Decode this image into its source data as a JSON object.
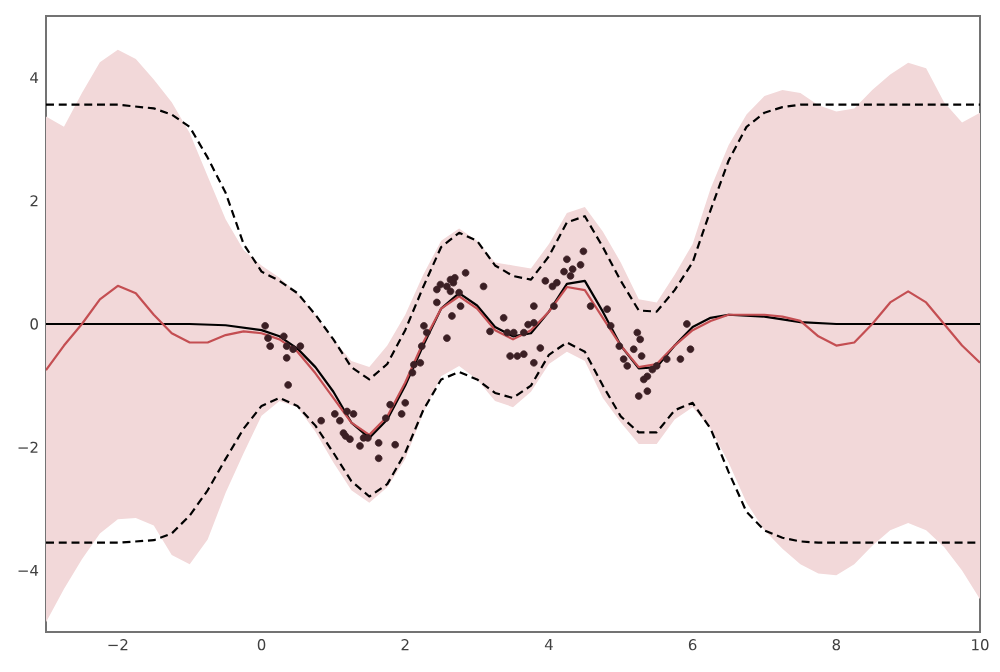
{
  "chart_data": {
    "type": "line",
    "xlim": [
      -3,
      10
    ],
    "ylim": [
      -5,
      5
    ],
    "xticks": [
      {
        "value": -2,
        "label": "−2"
      },
      0,
      2,
      4,
      6,
      8,
      10
    ],
    "yticks": [
      {
        "value": -4,
        "label": "−4"
      },
      {
        "value": -2,
        "label": "−2"
      },
      0,
      2,
      4
    ],
    "series": [
      {
        "color": "#000000",
        "line_style": "dashed",
        "x": [
          -3,
          -2.5,
          -2,
          -1.5,
          -1.25,
          -1,
          -0.75,
          -0.5,
          -0.25,
          0,
          0.25,
          0.5,
          0.75,
          1,
          1.25,
          1.5,
          1.75,
          2,
          2.25,
          2.5,
          2.75,
          3,
          3.25,
          3.5,
          3.75,
          4,
          4.25,
          4.5,
          4.75,
          5,
          5.25,
          5.5,
          5.75,
          6,
          6.25,
          6.5,
          6.75,
          7,
          7.25,
          7.5,
          8,
          10
        ],
        "values": [
          3.56,
          3.56,
          3.56,
          3.5,
          3.4,
          3.2,
          2.7,
          2.13,
          1.3,
          0.85,
          0.7,
          0.5,
          0.15,
          -0.25,
          -0.7,
          -0.9,
          -0.65,
          -0.1,
          0.6,
          1.25,
          1.48,
          1.35,
          0.95,
          0.78,
          0.72,
          1.1,
          1.65,
          1.75,
          1.25,
          0.7,
          0.22,
          0.2,
          0.55,
          1.0,
          1.85,
          2.65,
          3.2,
          3.43,
          3.52,
          3.56,
          3.56,
          3.56
        ]
      },
      {
        "color": "#000000",
        "line_style": "dashed",
        "x": [
          -3,
          -2,
          -1.5,
          -1.25,
          -1,
          -0.75,
          -0.5,
          -0.25,
          0,
          0.25,
          0.5,
          0.75,
          1,
          1.25,
          1.5,
          1.75,
          2,
          2.25,
          2.5,
          2.75,
          3,
          3.25,
          3.5,
          3.75,
          4,
          4.25,
          4.5,
          4.75,
          5,
          5.25,
          5.5,
          5.75,
          6,
          6.25,
          6.5,
          6.75,
          7,
          7.25,
          7.5,
          7.75,
          10
        ],
        "values": [
          -3.55,
          -3.55,
          -3.51,
          -3.4,
          -3.11,
          -2.7,
          -2.19,
          -1.7,
          -1.33,
          -1.2,
          -1.33,
          -1.65,
          -2.09,
          -2.55,
          -2.8,
          -2.6,
          -2.09,
          -1.4,
          -0.9,
          -0.78,
          -0.9,
          -1.12,
          -1.2,
          -1.0,
          -0.5,
          -0.3,
          -0.45,
          -1.0,
          -1.5,
          -1.76,
          -1.76,
          -1.4,
          -1.28,
          -1.7,
          -2.4,
          -3.05,
          -3.35,
          -3.47,
          -3.53,
          -3.55,
          -3.55
        ]
      },
      {
        "color": "#000000",
        "line_style": "solid",
        "x": [
          -3,
          -1,
          -0.5,
          0,
          0.25,
          0.5,
          0.75,
          1,
          1.25,
          1.5,
          1.75,
          2,
          2.25,
          2.5,
          2.75,
          3,
          3.25,
          3.5,
          3.75,
          4,
          4.25,
          4.5,
          4.75,
          5,
          5.25,
          5.5,
          5.75,
          6,
          6.25,
          6.5,
          7,
          7.5,
          8,
          10
        ],
        "values": [
          0,
          0,
          -0.02,
          -0.1,
          -0.2,
          -0.4,
          -0.7,
          -1.1,
          -1.6,
          -1.85,
          -1.55,
          -1.0,
          -0.35,
          0.25,
          0.5,
          0.3,
          -0.05,
          -0.2,
          -0.15,
          0.2,
          0.65,
          0.7,
          0.2,
          -0.35,
          -0.72,
          -0.7,
          -0.35,
          -0.05,
          0.1,
          0.15,
          0.12,
          0.03,
          0,
          0
        ]
      },
      {
        "color": "#c44e52",
        "line_style": "solid",
        "x": [
          -3,
          -2.75,
          -2.5,
          -2.25,
          -2,
          -1.75,
          -1.5,
          -1.25,
          -1,
          -0.75,
          -0.5,
          -0.25,
          0,
          0.25,
          0.5,
          0.75,
          1,
          1.25,
          1.5,
          1.75,
          2,
          2.25,
          2.5,
          2.75,
          3,
          3.25,
          3.5,
          3.75,
          4,
          4.25,
          4.5,
          4.75,
          5,
          5.25,
          5.5,
          5.75,
          6,
          6.25,
          6.5,
          6.75,
          7,
          7.25,
          7.5,
          7.75,
          8,
          8.25,
          8.5,
          8.75,
          9,
          9.25,
          9.5,
          9.75,
          10
        ],
        "values": [
          -0.75,
          -0.35,
          0.0,
          0.4,
          0.62,
          0.5,
          0.15,
          -0.15,
          -0.3,
          -0.3,
          -0.18,
          -0.12,
          -0.15,
          -0.25,
          -0.45,
          -0.8,
          -1.2,
          -1.6,
          -1.8,
          -1.5,
          -0.95,
          -0.3,
          0.25,
          0.45,
          0.25,
          -0.1,
          -0.25,
          -0.1,
          0.2,
          0.6,
          0.55,
          0.1,
          -0.35,
          -0.7,
          -0.65,
          -0.35,
          -0.1,
          0.05,
          0.15,
          0.15,
          0.15,
          0.12,
          0.05,
          -0.2,
          -0.35,
          -0.3,
          0.0,
          0.35,
          0.53,
          0.35,
          0.0,
          -0.35,
          -0.63
        ],
        "upper": [
          3.37,
          3.2,
          3.75,
          4.25,
          4.45,
          4.3,
          3.97,
          3.6,
          3.1,
          2.4,
          1.7,
          1.2,
          0.95,
          0.75,
          0.5,
          0.15,
          -0.25,
          -0.6,
          -0.7,
          -0.35,
          0.15,
          0.8,
          1.35,
          1.55,
          1.35,
          1.0,
          0.95,
          0.9,
          1.3,
          1.8,
          1.9,
          1.5,
          1.0,
          0.4,
          0.35,
          0.8,
          1.3,
          2.2,
          2.9,
          3.4,
          3.7,
          3.8,
          3.75,
          3.55,
          3.45,
          3.5,
          3.8,
          4.05,
          4.24,
          4.15,
          3.6,
          3.27,
          3.43
        ],
        "lower": [
          -4.84,
          -4.3,
          -3.82,
          -3.4,
          -3.17,
          -3.15,
          -3.27,
          -3.75,
          -3.9,
          -3.5,
          -2.74,
          -2.1,
          -1.49,
          -1.25,
          -1.35,
          -1.75,
          -2.25,
          -2.7,
          -2.9,
          -2.65,
          -2.19,
          -1.45,
          -0.85,
          -0.68,
          -0.9,
          -1.25,
          -1.35,
          -1.1,
          -0.65,
          -0.45,
          -0.6,
          -1.2,
          -1.6,
          -1.95,
          -1.95,
          -1.55,
          -1.35,
          -1.7,
          -2.25,
          -2.9,
          -3.35,
          -3.65,
          -3.9,
          -4.05,
          -4.08,
          -3.9,
          -3.6,
          -3.35,
          -3.23,
          -3.35,
          -3.62,
          -4.0,
          -4.47
        ]
      },
      {
        "type": "scatter",
        "color": "#3b1f24",
        "marker": "circle",
        "x": [
          0.05,
          0.09,
          0.12,
          0.31,
          0.35,
          0.44,
          0.54,
          0.35,
          0.37,
          0.83,
          1.02,
          1.09,
          1.14,
          1.19,
          1.23,
          1.28,
          1.17,
          1.37,
          1.42,
          1.48,
          1.63,
          1.63,
          1.79,
          1.86,
          1.73,
          1.95,
          2.0,
          2.1,
          2.12,
          2.21,
          2.23,
          2.3,
          2.26,
          2.44,
          2.44,
          2.49,
          2.58,
          2.63,
          2.63,
          2.67,
          2.69,
          2.75,
          2.65,
          2.58,
          2.84,
          3.09,
          2.77,
          3.18,
          3.37,
          3.42,
          3.51,
          3.65,
          3.71,
          3.79,
          3.46,
          3.56,
          3.65,
          3.79,
          3.88,
          3.79,
          3.95,
          4.05,
          4.11,
          4.07,
          4.21,
          4.3,
          4.33,
          4.25,
          4.44,
          4.48,
          4.58,
          4.81,
          4.86,
          4.98,
          5.04,
          5.09,
          5.18,
          5.23,
          5.27,
          5.29,
          5.37,
          5.32,
          5.25,
          5.37,
          5.44,
          5.5,
          5.64,
          5.83,
          5.92,
          5.97
        ],
        "values": [
          -0.03,
          -0.23,
          -0.36,
          -0.2,
          -0.36,
          -0.41,
          -0.36,
          -0.55,
          -0.99,
          -1.57,
          -1.46,
          -1.57,
          -1.77,
          -1.42,
          -1.87,
          -1.46,
          -1.82,
          -1.98,
          -1.85,
          -1.85,
          -1.93,
          -2.18,
          -1.31,
          -1.96,
          -1.53,
          -1.46,
          -1.28,
          -0.79,
          -0.66,
          -0.63,
          -0.36,
          -0.14,
          -0.03,
          0.35,
          0.56,
          0.64,
          0.61,
          0.72,
          0.53,
          0.67,
          0.75,
          0.51,
          0.13,
          -0.23,
          0.83,
          0.61,
          0.29,
          -0.12,
          0.1,
          -0.14,
          -0.14,
          -0.14,
          -0.01,
          0.02,
          -0.52,
          -0.52,
          -0.49,
          -0.63,
          -0.39,
          0.29,
          0.7,
          0.61,
          0.67,
          0.29,
          0.85,
          0.78,
          0.89,
          1.05,
          0.96,
          1.18,
          0.29,
          0.24,
          -0.03,
          -0.36,
          -0.57,
          -0.68,
          -0.41,
          -0.14,
          -0.25,
          -0.52,
          -0.85,
          -0.9,
          -1.17,
          -1.09,
          -0.74,
          -0.68,
          -0.57,
          -0.57,
          0.0,
          -0.41
        ]
      }
    ]
  }
}
